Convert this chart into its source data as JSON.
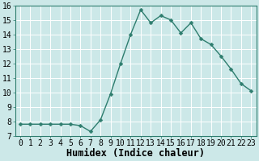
{
  "x": [
    0,
    1,
    2,
    3,
    4,
    5,
    6,
    7,
    8,
    9,
    10,
    11,
    12,
    13,
    14,
    15,
    16,
    17,
    18,
    19,
    20,
    21,
    22,
    23
  ],
  "y": [
    7.8,
    7.8,
    7.8,
    7.8,
    7.8,
    7.8,
    7.7,
    7.3,
    8.1,
    9.9,
    12.0,
    14.0,
    15.7,
    14.8,
    15.3,
    15.0,
    14.1,
    14.8,
    13.7,
    13.3,
    12.5,
    11.6,
    10.6,
    10.1
  ],
  "xlabel": "Humidex (Indice chaleur)",
  "ylim": [
    7,
    16
  ],
  "xlim": [
    -0.5,
    23.5
  ],
  "yticks": [
    7,
    8,
    9,
    10,
    11,
    12,
    13,
    14,
    15,
    16
  ],
  "xticks": [
    0,
    1,
    2,
    3,
    4,
    5,
    6,
    7,
    8,
    9,
    10,
    11,
    12,
    13,
    14,
    15,
    16,
    17,
    18,
    19,
    20,
    21,
    22,
    23
  ],
  "line_color": "#2e7d6e",
  "marker_color": "#2e7d6e",
  "bg_color": "#cce8e8",
  "grid_color": "#dddddd",
  "xlabel_fontsize": 8.5,
  "tick_fontsize": 7,
  "line_width": 1.0,
  "marker_size": 2.5
}
